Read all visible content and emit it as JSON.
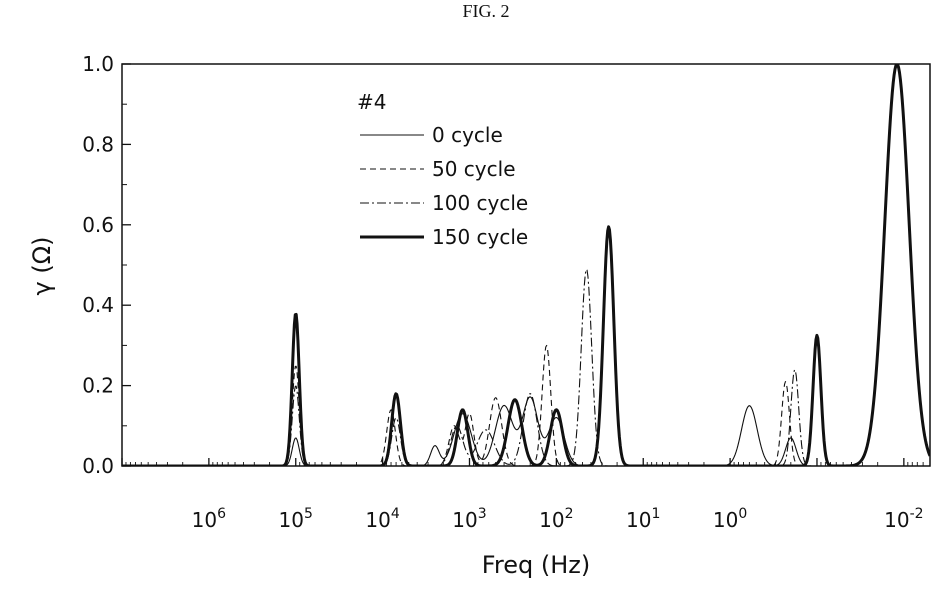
{
  "figure_label": "FIG. 2",
  "chart_data": {
    "type": "line",
    "xlabel": "Freq (Hz)",
    "ylabel": "γ (Ω)",
    "x_scale": "log",
    "x_direction": "decreasing",
    "xlim": [
      10000000,
      0.005
    ],
    "ylim": [
      0,
      1.0
    ],
    "x_tick_labels": [
      {
        "value": 1000000,
        "base": "10",
        "exp": "6"
      },
      {
        "value": 100000,
        "base": "10",
        "exp": "5"
      },
      {
        "value": 10000,
        "base": "10",
        "exp": "4"
      },
      {
        "value": 1000,
        "base": "10",
        "exp": "3"
      },
      {
        "value": 100,
        "base": "10",
        "exp": "2"
      },
      {
        "value": 10,
        "base": "10",
        "exp": "1"
      },
      {
        "value": 1,
        "base": "10",
        "exp": "0"
      },
      {
        "value": 0.01,
        "base": "10",
        "exp": "-2"
      }
    ],
    "y_ticks": [
      {
        "value": 0.0,
        "label": "0.0"
      },
      {
        "value": 0.2,
        "label": "0.2"
      },
      {
        "value": 0.4,
        "label": "0.4"
      },
      {
        "value": 0.6,
        "label": "0.6"
      },
      {
        "value": 0.8,
        "label": "0.8"
      },
      {
        "value": 1.0,
        "label": "1.0"
      }
    ],
    "legend_title": "#4",
    "legend_position": "top-left",
    "grid": false,
    "series": [
      {
        "name": "0 cycle",
        "style": "solid-thin",
        "peaks": [
          {
            "x": 100000,
            "y": 0.07,
            "w": 0.04
          },
          {
            "x": 2500,
            "y": 0.05,
            "w": 0.05
          },
          {
            "x": 1200,
            "y": 0.13,
            "w": 0.1
          },
          {
            "x": 400,
            "y": 0.15,
            "w": 0.1
          },
          {
            "x": 200,
            "y": 0.17,
            "w": 0.09
          },
          {
            "x": 100,
            "y": 0.12,
            "w": 0.09
          },
          {
            "x": 0.6,
            "y": 0.15,
            "w": 0.09
          },
          {
            "x": 0.2,
            "y": 0.07,
            "w": 0.06
          },
          {
            "x": 0.012,
            "y": 1.0,
            "w": 0.14
          }
        ]
      },
      {
        "name": "50 cycle",
        "style": "dashed",
        "peaks": [
          {
            "x": 100000,
            "y": 0.25,
            "w": 0.04
          },
          {
            "x": 8000,
            "y": 0.14,
            "w": 0.05
          },
          {
            "x": 1500,
            "y": 0.1,
            "w": 0.06
          },
          {
            "x": 1000,
            "y": 0.13,
            "w": 0.05
          },
          {
            "x": 500,
            "y": 0.17,
            "w": 0.07
          },
          {
            "x": 130,
            "y": 0.3,
            "w": 0.05
          },
          {
            "x": 0.23,
            "y": 0.21,
            "w": 0.045
          },
          {
            "x": 0.012,
            "y": 1.0,
            "w": 0.14
          }
        ]
      },
      {
        "name": "100 cycle",
        "style": "dashdot",
        "peaks": [
          {
            "x": 100000,
            "y": 0.2,
            "w": 0.04
          },
          {
            "x": 7000,
            "y": 0.12,
            "w": 0.05
          },
          {
            "x": 1400,
            "y": 0.1,
            "w": 0.07
          },
          {
            "x": 650,
            "y": 0.09,
            "w": 0.1
          },
          {
            "x": 200,
            "y": 0.18,
            "w": 0.08
          },
          {
            "x": 45,
            "y": 0.49,
            "w": 0.06
          },
          {
            "x": 0.18,
            "y": 0.24,
            "w": 0.045
          },
          {
            "x": 0.012,
            "y": 1.0,
            "w": 0.14
          }
        ]
      },
      {
        "name": "150 cycle",
        "style": "solid-thick",
        "peaks": [
          {
            "x": 100000,
            "y": 0.38,
            "w": 0.04
          },
          {
            "x": 7000,
            "y": 0.18,
            "w": 0.05
          },
          {
            "x": 1200,
            "y": 0.14,
            "w": 0.06
          },
          {
            "x": 300,
            "y": 0.165,
            "w": 0.08
          },
          {
            "x": 100,
            "y": 0.14,
            "w": 0.07
          },
          {
            "x": 25,
            "y": 0.595,
            "w": 0.06
          },
          {
            "x": 0.1,
            "y": 0.325,
            "w": 0.045
          },
          {
            "x": 0.012,
            "y": 1.0,
            "w": 0.14
          }
        ]
      }
    ]
  }
}
